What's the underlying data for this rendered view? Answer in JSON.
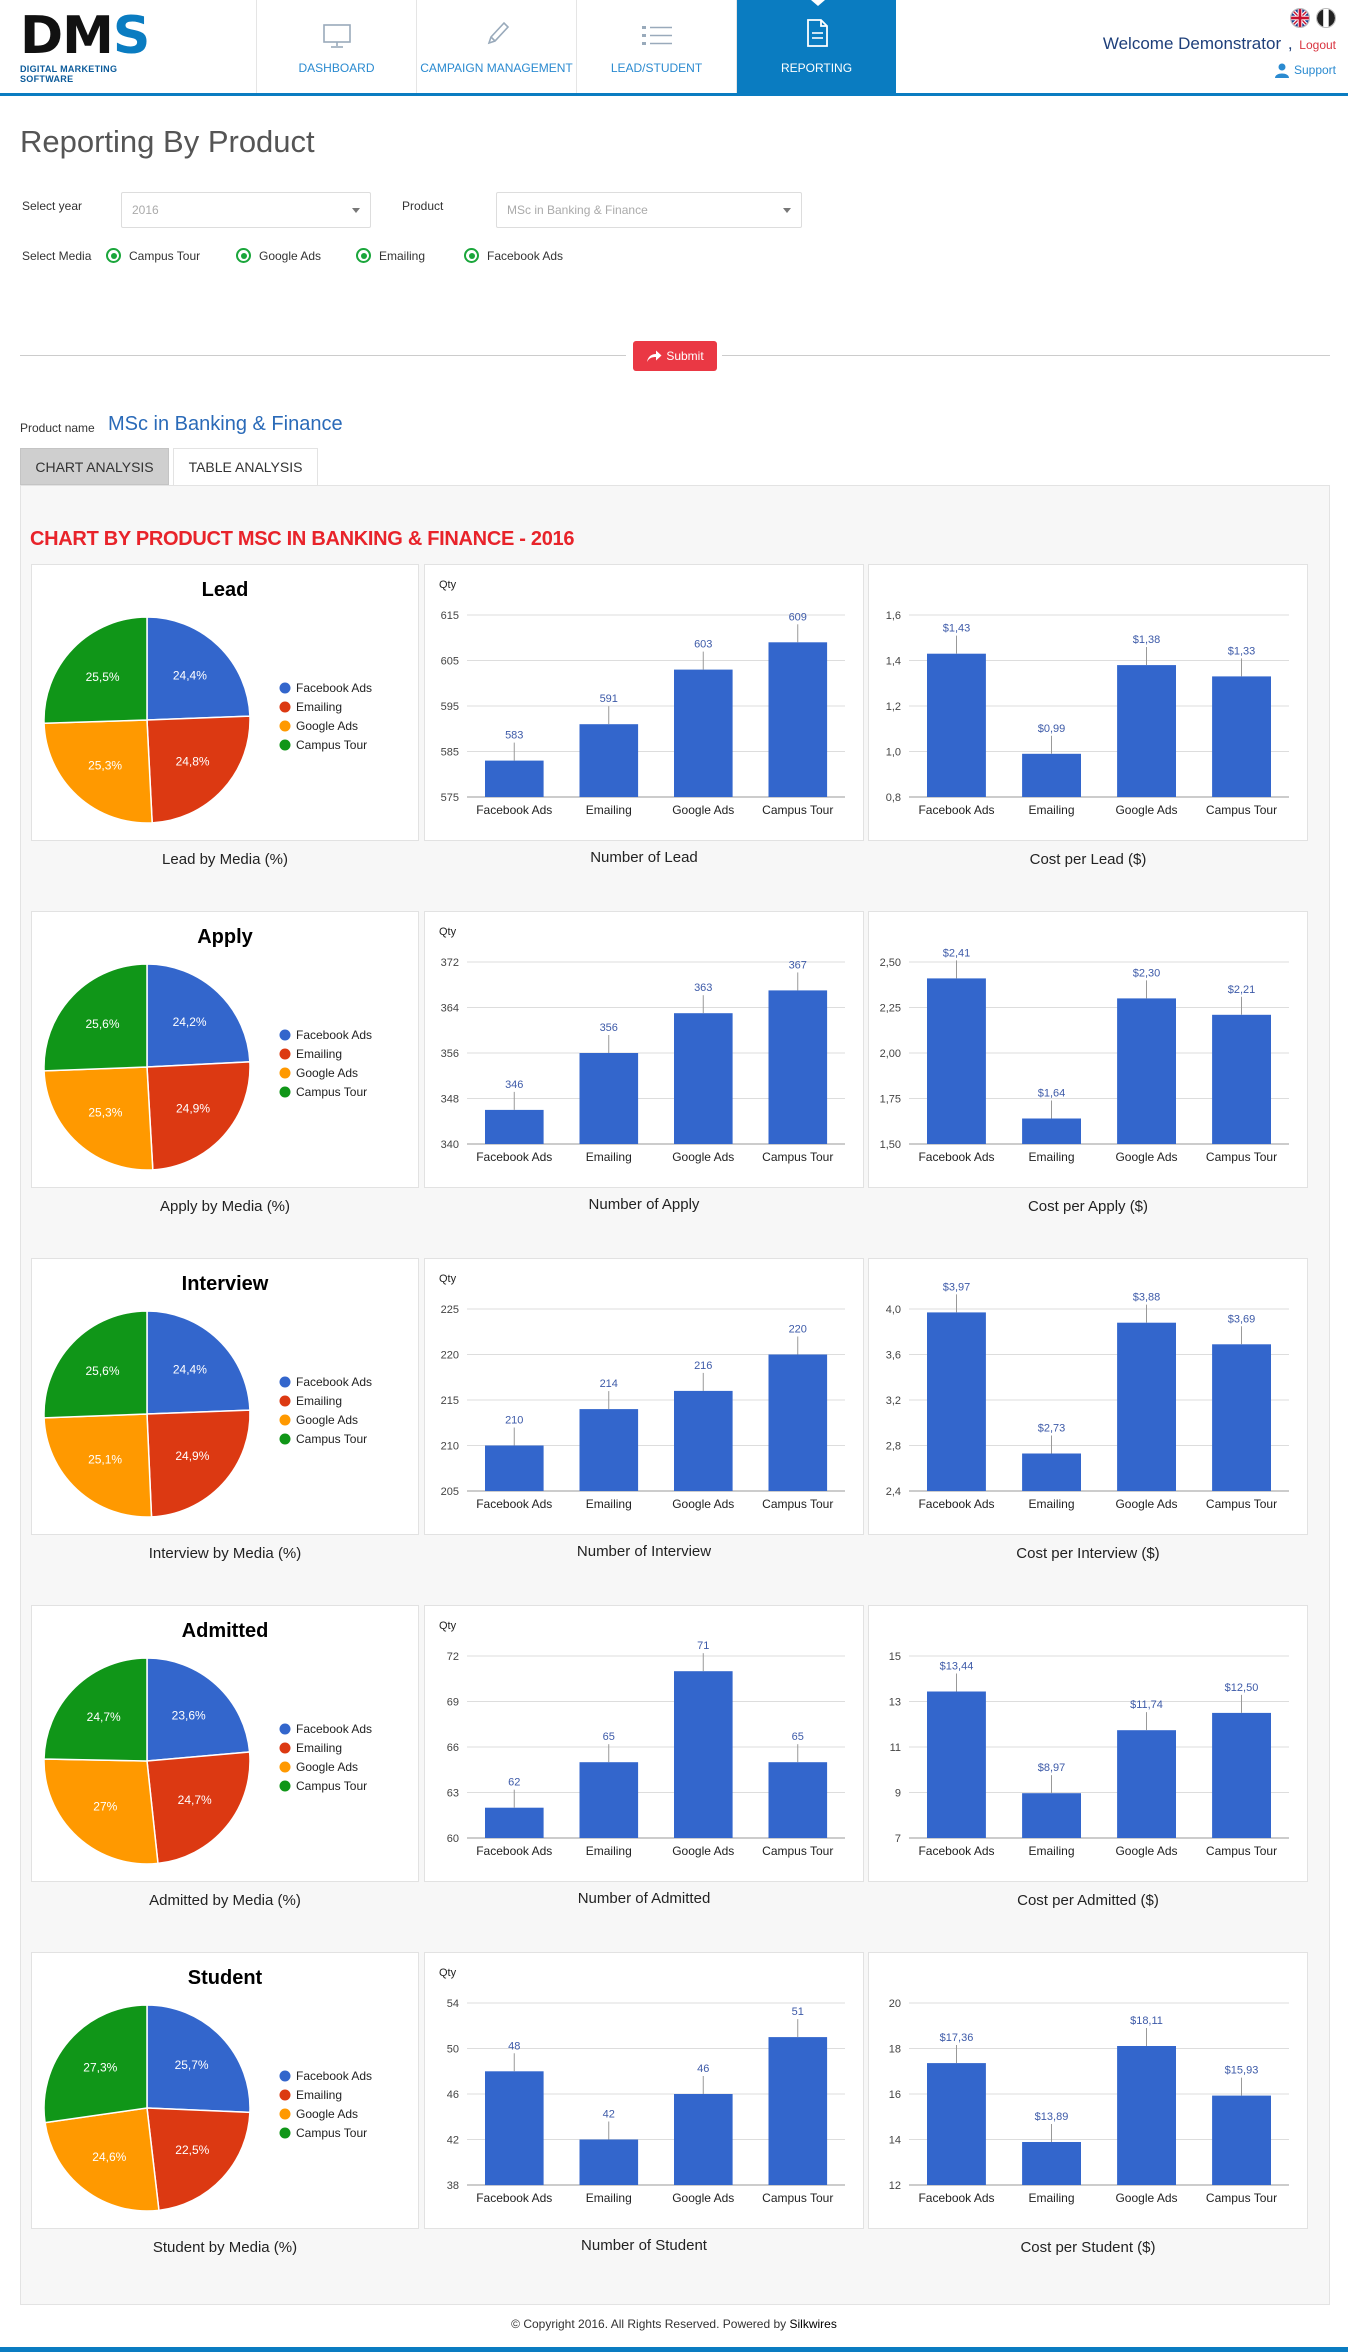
{
  "app": {
    "logo_text": "DMS",
    "logo_subtitle": "DIGITAL MARKETING SOFTWARE",
    "nav": [
      {
        "label": "DASHBOARD",
        "icon": "monitor-icon"
      },
      {
        "label": "CAMPAIGN MANAGEMENT",
        "icon": "pencil-icon"
      },
      {
        "label": "LEAD/STUDENT",
        "icon": "list-icon"
      },
      {
        "label": "REPORTING",
        "icon": "document-icon"
      }
    ],
    "welcome": "Welcome Demonstrator",
    "logout": "Logout",
    "support": "Support"
  },
  "page": {
    "title": "Reporting By Product",
    "select_year_label": "Select year",
    "select_year_value": "2016",
    "product_label": "Product",
    "product_value": "MSc in Banking & Finance",
    "select_media_label": "Select Media",
    "media_options": [
      "Campus Tour",
      "Google Ads",
      "Emailing",
      "Facebook Ads"
    ],
    "submit_label": "Submit",
    "product_name_label": "Product name",
    "product_name": "MSc in Banking & Finance",
    "tabs": [
      "CHART ANALYSIS",
      "TABLE ANALYSIS"
    ],
    "chart_heading": "CHART BY PRODUCT MSC IN BANKING & FINANCE - 2016",
    "footer_text": "© Copyright 2016. All Rights Reserved. Powered by",
    "footer_link": "Silkwires"
  },
  "colors": {
    "facebook": "#3366cc",
    "emailing": "#dc3912",
    "google": "#ff9900",
    "campus": "#109618",
    "bar": "#3366cc",
    "accent": "#0a7cc1",
    "heading_red": "#e8232a"
  },
  "chart_data": [
    {
      "stage": "Lead",
      "pie": {
        "type": "pie",
        "title": "Lead",
        "caption": "Lead by Media (%)",
        "legend": [
          "Facebook Ads",
          "Emailing",
          "Google Ads",
          "Campus Tour"
        ],
        "values": [
          24.4,
          24.8,
          25.3,
          25.5
        ],
        "labels": [
          "24,4%",
          "24,8%",
          "25,3%",
          "25,5%"
        ]
      },
      "count": {
        "type": "bar",
        "caption": "Number of Lead",
        "ylabel": "Qty",
        "categories": [
          "Facebook Ads",
          "Emailing",
          "Google Ads",
          "Campus Tour"
        ],
        "values": [
          583,
          591,
          603,
          609
        ],
        "labels": [
          "583",
          "591",
          "603",
          "609"
        ],
        "ylim": [
          575,
          615
        ],
        "ticks": [
          "575",
          "585",
          "595",
          "605",
          "615"
        ]
      },
      "cost": {
        "type": "bar",
        "caption": "Cost per Lead ($)",
        "categories": [
          "Facebook Ads",
          "Emailing",
          "Google Ads",
          "Campus Tour"
        ],
        "values": [
          1.43,
          0.99,
          1.38,
          1.33
        ],
        "labels": [
          "$1,43",
          "$0,99",
          "$1,38",
          "$1,33"
        ],
        "ylim": [
          0.8,
          1.6
        ],
        "ticks": [
          "0,8",
          "1,0",
          "1,2",
          "1,4",
          "1,6"
        ]
      }
    },
    {
      "stage": "Apply",
      "pie": {
        "type": "pie",
        "title": "Apply",
        "caption": "Apply by Media (%)",
        "legend": [
          "Facebook Ads",
          "Emailing",
          "Google Ads",
          "Campus Tour"
        ],
        "values": [
          24.2,
          24.9,
          25.3,
          25.6
        ],
        "labels": [
          "24,2%",
          "24,9%",
          "25,3%",
          "25,6%"
        ]
      },
      "count": {
        "type": "bar",
        "caption": "Number of Apply",
        "ylabel": "Qty",
        "categories": [
          "Facebook Ads",
          "Emailing",
          "Google Ads",
          "Campus Tour"
        ],
        "values": [
          346,
          356,
          363,
          367
        ],
        "labels": [
          "346",
          "356",
          "363",
          "367"
        ],
        "ylim": [
          340,
          372
        ],
        "ticks": [
          "340",
          "348",
          "356",
          "364",
          "372"
        ]
      },
      "cost": {
        "type": "bar",
        "caption": "Cost per Apply ($)",
        "categories": [
          "Facebook Ads",
          "Emailing",
          "Google Ads",
          "Campus Tour"
        ],
        "values": [
          2.41,
          1.64,
          2.3,
          2.21
        ],
        "labels": [
          "$2,41",
          "$1,64",
          "$2,30",
          "$2,21"
        ],
        "ylim": [
          1.5,
          2.5
        ],
        "ticks": [
          "1,50",
          "1,75",
          "2,00",
          "2,25",
          "2,50"
        ]
      }
    },
    {
      "stage": "Interview",
      "pie": {
        "type": "pie",
        "title": "Interview",
        "caption": "Interview by Media (%)",
        "legend": [
          "Facebook Ads",
          "Emailing",
          "Google Ads",
          "Campus Tour"
        ],
        "values": [
          24.4,
          24.9,
          25.1,
          25.6
        ],
        "labels": [
          "24,4%",
          "24,9%",
          "25,1%",
          "25,6%"
        ]
      },
      "count": {
        "type": "bar",
        "caption": "Number of Interview",
        "ylabel": "Qty",
        "categories": [
          "Facebook Ads",
          "Emailing",
          "Google Ads",
          "Campus Tour"
        ],
        "values": [
          210,
          214,
          216,
          220
        ],
        "labels": [
          "210",
          "214",
          "216",
          "220"
        ],
        "ylim": [
          205,
          225
        ],
        "ticks": [
          "205",
          "210",
          "215",
          "220",
          "225"
        ]
      },
      "cost": {
        "type": "bar",
        "caption": "Cost per Interview ($)",
        "categories": [
          "Facebook Ads",
          "Emailing",
          "Google Ads",
          "Campus Tour"
        ],
        "values": [
          3.97,
          2.73,
          3.88,
          3.69
        ],
        "labels": [
          "$3,97",
          "$2,73",
          "$3,88",
          "$3,69"
        ],
        "ylim": [
          2.4,
          4.0
        ],
        "ticks": [
          "2,4",
          "2,8",
          "3,2",
          "3,6",
          "4,0"
        ]
      }
    },
    {
      "stage": "Admitted",
      "pie": {
        "type": "pie",
        "title": "Admitted",
        "caption": "Admitted by Media (%)",
        "legend": [
          "Facebook Ads",
          "Emailing",
          "Google Ads",
          "Campus Tour"
        ],
        "values": [
          23.6,
          24.7,
          27,
          24.7
        ],
        "labels": [
          "23,6%",
          "24,7%",
          "27%",
          "24,7%"
        ]
      },
      "count": {
        "type": "bar",
        "caption": "Number of Admitted",
        "ylabel": "Qty",
        "categories": [
          "Facebook Ads",
          "Emailing",
          "Google Ads",
          "Campus Tour"
        ],
        "values": [
          62,
          65,
          71,
          65
        ],
        "labels": [
          "62",
          "65",
          "71",
          "65"
        ],
        "ylim": [
          60,
          72
        ],
        "ticks": [
          "60",
          "63",
          "66",
          "69",
          "72"
        ]
      },
      "cost": {
        "type": "bar",
        "caption": "Cost per Admitted ($)",
        "categories": [
          "Facebook Ads",
          "Emailing",
          "Google Ads",
          "Campus Tour"
        ],
        "values": [
          13.44,
          8.97,
          11.74,
          12.5
        ],
        "labels": [
          "$13,44",
          "$8,97",
          "$11,74",
          "$12,50"
        ],
        "ylim": [
          7,
          15
        ],
        "ticks": [
          "7",
          "9",
          "11",
          "13",
          "15"
        ]
      }
    },
    {
      "stage": "Student",
      "pie": {
        "type": "pie",
        "title": "Student",
        "caption": "Student by Media (%)",
        "legend": [
          "Facebook Ads",
          "Emailing",
          "Google Ads",
          "Campus Tour"
        ],
        "values": [
          25.7,
          22.5,
          24.6,
          27.3
        ],
        "labels": [
          "25,7%",
          "22,5%",
          "24,6%",
          "27,3%"
        ]
      },
      "count": {
        "type": "bar",
        "caption": "Number of Student",
        "ylabel": "Qty",
        "categories": [
          "Facebook Ads",
          "Emailing",
          "Google Ads",
          "Campus Tour"
        ],
        "values": [
          48,
          42,
          46,
          51
        ],
        "labels": [
          "48",
          "42",
          "46",
          "51"
        ],
        "ylim": [
          38,
          54
        ],
        "ticks": [
          "38",
          "42",
          "46",
          "50",
          "54"
        ]
      },
      "cost": {
        "type": "bar",
        "caption": "Cost per Student ($)",
        "categories": [
          "Facebook Ads",
          "Emailing",
          "Google Ads",
          "Campus Tour"
        ],
        "values": [
          17.36,
          13.89,
          18.11,
          15.93
        ],
        "labels": [
          "$17,36",
          "$13,89",
          "$18,11",
          "$15,93"
        ],
        "ylim": [
          12,
          20
        ],
        "ticks": [
          "12",
          "14",
          "16",
          "18",
          "20"
        ]
      }
    }
  ]
}
